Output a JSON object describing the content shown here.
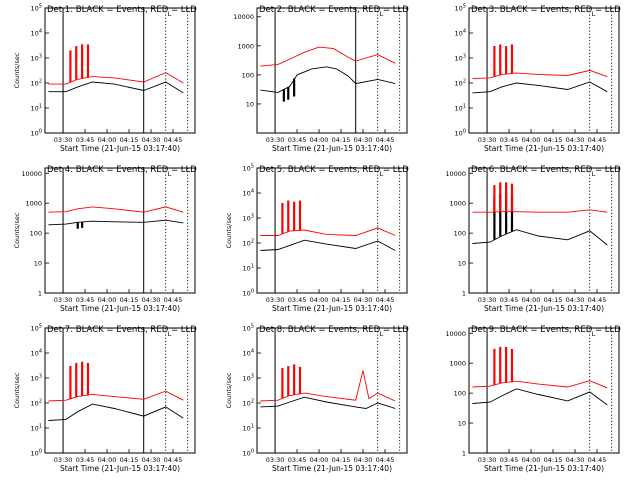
{
  "window": {
    "title": ""
  },
  "chart_data": [
    {
      "type": "line",
      "scale": "log",
      "title": "Det 1: BLACK = Events, RED = LLD",
      "ylabel": "Counts/sec",
      "xlabel": "Start Time (21-Jun-15 03:17:40)",
      "x_tick_labels": [
        "03:30",
        "03:45",
        "04:00",
        "04:15",
        "04:30",
        "04:45"
      ],
      "y_tick_labels": [
        "10^0",
        "10^1",
        "10^2",
        "10^3",
        "10^4",
        "10^5"
      ],
      "ylim": [
        1,
        100000
      ],
      "vlines_solid": [
        "03:30",
        "04:25"
      ],
      "vlines_dotted": [
        "04:40",
        "04:55"
      ],
      "marker_label": "L",
      "series": [
        {
          "name": "Events",
          "color": "#000000",
          "x": [
            "03:20",
            "03:32",
            "03:40",
            "03:50",
            "04:05",
            "04:25",
            "04:40",
            "04:52"
          ],
          "values": [
            45,
            45,
            70,
            110,
            90,
            50,
            110,
            40
          ],
          "spikes": []
        },
        {
          "name": "LLD",
          "color": "#ff0000",
          "x": [
            "03:20",
            "03:32",
            "03:40",
            "03:50",
            "04:05",
            "04:25",
            "04:40",
            "04:52"
          ],
          "values": [
            90,
            90,
            140,
            180,
            160,
            110,
            260,
            100
          ],
          "spikes": [
            [
              "03:35",
              2000
            ],
            [
              "03:39",
              3000
            ],
            [
              "03:43",
              3500
            ],
            [
              "03:47",
              3500
            ]
          ]
        }
      ]
    },
    {
      "type": "line",
      "scale": "log",
      "title": "Det 2: BLACK = Events, RED = LLD",
      "ylabel": "",
      "xlabel": "Start Time (21-Jun-15 03:17:40)",
      "x_tick_labels": [
        "03:30",
        "03:45",
        "04:00",
        "04:15",
        "04:30",
        "04:45"
      ],
      "y_tick_labels": [
        "10",
        "100",
        "1000",
        "10000"
      ],
      "ylim": [
        1,
        20000
      ],
      "vlines_solid": [
        "03:30",
        "04:25"
      ],
      "vlines_dotted": [
        "04:40",
        "04:55"
      ],
      "marker_label": "L",
      "series": [
        {
          "name": "Events",
          "color": "#000000",
          "x": [
            "03:20",
            "03:32",
            "03:40",
            "03:45",
            "03:55",
            "04:05",
            "04:12",
            "04:20",
            "04:25",
            "04:40",
            "04:52"
          ],
          "values": [
            30,
            25,
            40,
            100,
            160,
            190,
            160,
            90,
            50,
            70,
            50
          ],
          "spikes": [
            [
              "03:36",
              12
            ],
            [
              "03:39",
              14
            ],
            [
              "03:43",
              18
            ]
          ]
        },
        {
          "name": "LLD",
          "color": "#ff0000",
          "x": [
            "03:20",
            "03:32",
            "03:40",
            "03:50",
            "04:00",
            "04:10",
            "04:20",
            "04:25",
            "04:40",
            "04:52"
          ],
          "values": [
            200,
            230,
            350,
            600,
            900,
            800,
            400,
            300,
            500,
            250
          ],
          "spikes": []
        }
      ]
    },
    {
      "type": "line",
      "scale": "log",
      "title": "Det 3: BLACK = Events, RED = LLD",
      "ylabel": "",
      "xlabel": "Start Time (21-Jun-15 03:17:40)",
      "x_tick_labels": [
        "03:30",
        "03:45",
        "04:00",
        "04:15",
        "04:30",
        "04:45"
      ],
      "y_tick_labels": [
        "10^0",
        "10^1",
        "10^2",
        "10^3",
        "10^4",
        "10^5"
      ],
      "ylim": [
        1,
        100000
      ],
      "vlines_solid": [
        "03:30"
      ],
      "vlines_dotted": [
        "04:40",
        "04:55"
      ],
      "marker_label": "L",
      "series": [
        {
          "name": "Events",
          "color": "#000000",
          "x": [
            "03:20",
            "03:32",
            "03:40",
            "03:50",
            "04:05",
            "04:25",
            "04:40",
            "04:52"
          ],
          "values": [
            40,
            45,
            70,
            100,
            80,
            55,
            110,
            45
          ],
          "spikes": []
        },
        {
          "name": "LLD",
          "color": "#ff0000",
          "x": [
            "03:20",
            "03:32",
            "03:40",
            "03:50",
            "04:05",
            "04:25",
            "04:40",
            "04:52"
          ],
          "values": [
            150,
            160,
            220,
            250,
            220,
            200,
            320,
            180
          ],
          "spikes": [
            [
              "03:35",
              3000
            ],
            [
              "03:39",
              3500
            ],
            [
              "03:43",
              3000
            ],
            [
              "03:47",
              3500
            ]
          ]
        }
      ]
    },
    {
      "type": "line",
      "scale": "log",
      "title": "Det 4: BLACK = Events, RED = LLD",
      "ylabel": "Counts/sec",
      "xlabel": "Start Time (21-Jun-15 03:17:40)",
      "x_tick_labels": [
        "03:30",
        "03:45",
        "04:00",
        "04:15",
        "04:30",
        "04:45"
      ],
      "y_tick_labels": [
        "1",
        "10",
        "100",
        "1000",
        "10000"
      ],
      "ylim": [
        1,
        15000
      ],
      "vlines_solid": [
        "03:30",
        "04:25"
      ],
      "vlines_dotted": [
        "04:40",
        "04:55"
      ],
      "marker_label": "L",
      "series": [
        {
          "name": "Events",
          "color": "#000000",
          "x": [
            "03:20",
            "03:32",
            "03:40",
            "03:50",
            "04:05",
            "04:25",
            "04:40",
            "04:52"
          ],
          "values": [
            190,
            200,
            230,
            250,
            240,
            230,
            270,
            220
          ],
          "spikes": [
            [
              "03:40",
              140
            ],
            [
              "03:43",
              150
            ]
          ]
        },
        {
          "name": "LLD",
          "color": "#ff0000",
          "x": [
            "03:20",
            "03:32",
            "03:40",
            "03:50",
            "04:05",
            "04:25",
            "04:40",
            "04:52"
          ],
          "values": [
            500,
            520,
            650,
            750,
            650,
            500,
            750,
            500
          ],
          "spikes": []
        }
      ]
    },
    {
      "type": "line",
      "scale": "log",
      "title": "Det 5: BLACK = Events, RED = LLD",
      "ylabel": "Counts/sec",
      "xlabel": "Start Time (21-Jun-15 03:17:40)",
      "x_tick_labels": [
        "03:30",
        "03:45",
        "04:00",
        "04:15",
        "04:30",
        "04:45"
      ],
      "y_tick_labels": [
        "10^0",
        "10^1",
        "10^2",
        "10^3",
        "10^4",
        "10^5"
      ],
      "ylim": [
        1,
        100000
      ],
      "vlines_solid": [
        "03:30"
      ],
      "vlines_dotted": [
        "04:40",
        "04:55"
      ],
      "marker_label": "L",
      "series": [
        {
          "name": "Events",
          "color": "#000000",
          "x": [
            "03:20",
            "03:32",
            "03:40",
            "03:50",
            "04:05",
            "04:25",
            "04:40",
            "04:52"
          ],
          "values": [
            50,
            55,
            80,
            130,
            90,
            60,
            120,
            50
          ],
          "spikes": []
        },
        {
          "name": "LLD",
          "color": "#ff0000",
          "x": [
            "03:20",
            "03:32",
            "03:40",
            "03:50",
            "04:05",
            "04:25",
            "04:40",
            "04:52"
          ],
          "values": [
            200,
            200,
            300,
            330,
            220,
            200,
            400,
            200
          ],
          "spikes": [
            [
              "03:35",
              4000
            ],
            [
              "03:39",
              5000
            ],
            [
              "03:43",
              4500
            ],
            [
              "03:47",
              5000
            ]
          ]
        }
      ]
    },
    {
      "type": "line",
      "scale": "log",
      "title": "Det 6: BLACK = Events, RED = LLD",
      "ylabel": "",
      "xlabel": "Start Time (21-Jun-15 03:17:40)",
      "x_tick_labels": [
        "03:30",
        "03:45",
        "04:00",
        "04:15",
        "04:30",
        "04:45"
      ],
      "y_tick_labels": [
        "1",
        "10",
        "100",
        "1000",
        "10000"
      ],
      "ylim": [
        1,
        15000
      ],
      "vlines_solid": [
        "03:30"
      ],
      "vlines_dotted": [
        "04:40",
        "04:55"
      ],
      "marker_label": "L",
      "series": [
        {
          "name": "Events",
          "color": "#000000",
          "x": [
            "03:20",
            "03:32",
            "03:40",
            "03:50",
            "04:05",
            "04:25",
            "04:40",
            "04:52"
          ],
          "values": [
            45,
            50,
            80,
            130,
            80,
            60,
            120,
            40
          ],
          "spikes": [
            [
              "03:35",
              1500
            ],
            [
              "03:39",
              2000
            ],
            [
              "03:43",
              2200
            ],
            [
              "03:47",
              1800
            ]
          ]
        },
        {
          "name": "LLD",
          "color": "#ff0000",
          "x": [
            "03:20",
            "03:32",
            "03:40",
            "03:50",
            "04:05",
            "04:25",
            "04:40",
            "04:52"
          ],
          "values": [
            500,
            500,
            520,
            520,
            500,
            500,
            600,
            500
          ],
          "spikes": [
            [
              "03:35",
              4000
            ],
            [
              "03:39",
              5000
            ],
            [
              "03:43",
              5000
            ],
            [
              "03:47",
              4500
            ]
          ]
        }
      ]
    },
    {
      "type": "line",
      "scale": "log",
      "title": "Det 7: BLACK = Events, RED = LLD",
      "ylabel": "Counts/sec",
      "xlabel": "Start Time (21-Jun-15 03:17:40)",
      "x_tick_labels": [
        "03:30",
        "03:45",
        "04:00",
        "04:15",
        "04:30",
        "04:45"
      ],
      "y_tick_labels": [
        "10^0",
        "10^1",
        "10^2",
        "10^3",
        "10^4",
        "10^5"
      ],
      "ylim": [
        1,
        100000
      ],
      "vlines_solid": [
        "03:30",
        "04:25"
      ],
      "vlines_dotted": [
        "04:40",
        "04:55"
      ],
      "marker_label": "L",
      "series": [
        {
          "name": "Events",
          "color": "#000000",
          "x": [
            "03:20",
            "03:32",
            "03:40",
            "03:50",
            "04:05",
            "04:25",
            "04:40",
            "04:52"
          ],
          "values": [
            20,
            22,
            45,
            90,
            60,
            30,
            70,
            25
          ],
          "spikes": []
        },
        {
          "name": "LLD",
          "color": "#ff0000",
          "x": [
            "03:20",
            "03:32",
            "03:40",
            "03:50",
            "04:05",
            "04:25",
            "04:40",
            "04:52"
          ],
          "values": [
            120,
            130,
            180,
            220,
            180,
            140,
            300,
            130
          ],
          "spikes": [
            [
              "03:35",
              3000
            ],
            [
              "03:39",
              4000
            ],
            [
              "03:43",
              4500
            ],
            [
              "03:47",
              4000
            ]
          ]
        }
      ]
    },
    {
      "type": "line",
      "scale": "log",
      "title": "Det 8: BLACK = Events, RED = LLD",
      "ylabel": "Counts/sec",
      "xlabel": "Start Time (21-Jun-15 03:17:40)",
      "x_tick_labels": [
        "03:30",
        "03:45",
        "04:00",
        "04:15",
        "04:30",
        "04:45"
      ],
      "y_tick_labels": [
        "10^0",
        "10^1",
        "10^2",
        "10^3",
        "10^4",
        "10^5"
      ],
      "ylim": [
        1,
        100000
      ],
      "vlines_solid": [
        "03:30"
      ],
      "vlines_dotted": [
        "04:40",
        "04:55"
      ],
      "marker_label": "L",
      "series": [
        {
          "name": "Events",
          "color": "#000000",
          "x": [
            "03:20",
            "03:32",
            "03:40",
            "03:50",
            "04:05",
            "04:25",
            "04:32",
            "04:40",
            "04:52"
          ],
          "values": [
            70,
            75,
            110,
            170,
            110,
            70,
            60,
            100,
            60
          ],
          "spikes": []
        },
        {
          "name": "LLD",
          "color": "#ff0000",
          "x": [
            "03:20",
            "03:32",
            "03:40",
            "03:50",
            "04:05",
            "04:25",
            "04:30",
            "04:34",
            "04:40",
            "04:52"
          ],
          "values": [
            120,
            130,
            200,
            250,
            180,
            130,
            2000,
            150,
            250,
            120
          ],
          "spikes": [
            [
              "03:35",
              2500
            ],
            [
              "03:39",
              3000
            ],
            [
              "03:43",
              3500
            ],
            [
              "03:47",
              2800
            ]
          ]
        }
      ]
    },
    {
      "type": "line",
      "scale": "log",
      "title": "Det 9: BLACK = Events, RED = LLD",
      "ylabel": "",
      "xlabel": "Start Time (21-Jun-15 03:17:40)",
      "x_tick_labels": [
        "03:30",
        "03:45",
        "04:00",
        "04:15",
        "04:30",
        "04:45"
      ],
      "y_tick_labels": [
        "1",
        "10",
        "100",
        "1000",
        "10000"
      ],
      "ylim": [
        1,
        15000
      ],
      "vlines_solid": [
        "03:30"
      ],
      "vlines_dotted": [
        "04:40",
        "04:55"
      ],
      "marker_label": "L",
      "series": [
        {
          "name": "Events",
          "color": "#000000",
          "x": [
            "03:20",
            "03:32",
            "03:40",
            "03:50",
            "04:05",
            "04:25",
            "04:40",
            "04:52"
          ],
          "values": [
            45,
            50,
            80,
            140,
            90,
            55,
            110,
            40
          ],
          "spikes": []
        },
        {
          "name": "LLD",
          "color": "#ff0000",
          "x": [
            "03:20",
            "03:32",
            "03:40",
            "03:50",
            "04:05",
            "04:25",
            "04:40",
            "04:52"
          ],
          "values": [
            160,
            170,
            220,
            250,
            200,
            160,
            260,
            150
          ],
          "spikes": [
            [
              "03:35",
              3000
            ],
            [
              "03:39",
              3500
            ],
            [
              "03:43",
              3500
            ],
            [
              "03:47",
              3000
            ]
          ]
        }
      ]
    }
  ]
}
